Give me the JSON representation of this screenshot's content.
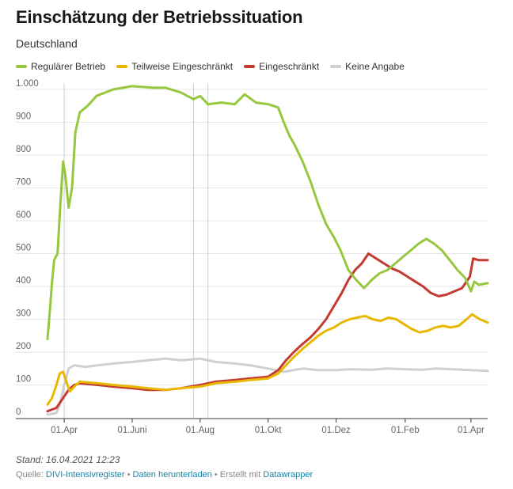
{
  "header": {
    "title": "Einschätzung der Betriebssituation",
    "subtitle": "Deutschland"
  },
  "legend": [
    {
      "label": "Regulärer Betrieb",
      "color": "#97c73f"
    },
    {
      "label": "Teilweise Eingeschränkt",
      "color": "#e8b800"
    },
    {
      "label": "Eingeschränkt",
      "color": "#c33a32"
    },
    {
      "label": "Keine Angabe",
      "color": "#cfcfcf"
    }
  ],
  "footer": {
    "stand": "Stand: 16.04.2021 12:23",
    "source_prefix": "Quelle: ",
    "source_link": "DIVI-Intensivregister",
    "sep1": " • ",
    "download_link": "Daten herunterladen",
    "sep2": " • Erstellt mit ",
    "tool_link": "Datawrapper"
  },
  "chart_data": {
    "type": "line",
    "title": "Einschätzung der Betriebssituation",
    "subtitle": "Deutschland",
    "xlabel": "",
    "ylabel": "",
    "x_range": [
      "2020-03-17",
      "2021-04-16"
    ],
    "ylim": [
      0,
      1000
    ],
    "y_ticks": [
      0,
      100,
      200,
      300,
      400,
      500,
      600,
      700,
      800,
      900,
      1000
    ],
    "y_tick_labels": [
      "0",
      "100",
      "200",
      "300",
      "400",
      "500",
      "600",
      "700",
      "800",
      "900",
      "1.000"
    ],
    "x_ticks": [
      {
        "date": "2020-04-01",
        "label": "01.Apr"
      },
      {
        "date": "2020-06-01",
        "label": "01.Juni"
      },
      {
        "date": "2020-08-01",
        "label": "01.Aug"
      },
      {
        "date": "2020-10-01",
        "label": "01.Okt"
      },
      {
        "date": "2020-12-01",
        "label": "01.Dez"
      },
      {
        "date": "2021-02-01",
        "label": "01.Feb"
      },
      {
        "date": "2021-04-01",
        "label": "01.Apr"
      }
    ],
    "reference_lines": [
      "2020-04-01",
      "2020-07-26",
      "2020-08-08"
    ],
    "series": [
      {
        "name": "Regulärer Betrieb",
        "color": "#97c73f",
        "points": [
          [
            "2020-03-17",
            240
          ],
          [
            "2020-03-19",
            320
          ],
          [
            "2020-03-21",
            410
          ],
          [
            "2020-03-23",
            480
          ],
          [
            "2020-03-26",
            500
          ],
          [
            "2020-03-28",
            620
          ],
          [
            "2020-03-31",
            780
          ],
          [
            "2020-04-02",
            740
          ],
          [
            "2020-04-05",
            640
          ],
          [
            "2020-04-08",
            700
          ],
          [
            "2020-04-11",
            870
          ],
          [
            "2020-04-15",
            930
          ],
          [
            "2020-04-22",
            950
          ],
          [
            "2020-04-30",
            980
          ],
          [
            "2020-05-15",
            1000
          ],
          [
            "2020-06-01",
            1010
          ],
          [
            "2020-06-20",
            1005
          ],
          [
            "2020-07-01",
            1005
          ],
          [
            "2020-07-15",
            990
          ],
          [
            "2020-07-26",
            970
          ],
          [
            "2020-08-01",
            980
          ],
          [
            "2020-08-08",
            955
          ],
          [
            "2020-08-20",
            960
          ],
          [
            "2020-09-01",
            955
          ],
          [
            "2020-09-10",
            985
          ],
          [
            "2020-09-20",
            960
          ],
          [
            "2020-10-01",
            955
          ],
          [
            "2020-10-10",
            945
          ],
          [
            "2020-10-15",
            900
          ],
          [
            "2020-10-20",
            860
          ],
          [
            "2020-10-25",
            830
          ],
          [
            "2020-11-01",
            780
          ],
          [
            "2020-11-08",
            720
          ],
          [
            "2020-11-15",
            650
          ],
          [
            "2020-11-22",
            590
          ],
          [
            "2020-11-29",
            550
          ],
          [
            "2020-12-05",
            510
          ],
          [
            "2020-12-12",
            450
          ],
          [
            "2020-12-19",
            420
          ],
          [
            "2020-12-26",
            395
          ],
          [
            "2021-01-02",
            420
          ],
          [
            "2021-01-09",
            440
          ],
          [
            "2021-01-16",
            450
          ],
          [
            "2021-01-23",
            470
          ],
          [
            "2021-01-30",
            490
          ],
          [
            "2021-02-06",
            510
          ],
          [
            "2021-02-13",
            530
          ],
          [
            "2021-02-20",
            545
          ],
          [
            "2021-02-27",
            530
          ],
          [
            "2021-03-06",
            510
          ],
          [
            "2021-03-13",
            480
          ],
          [
            "2021-03-20",
            450
          ],
          [
            "2021-03-27",
            425
          ],
          [
            "2021-04-01",
            385
          ],
          [
            "2021-04-04",
            415
          ],
          [
            "2021-04-08",
            405
          ],
          [
            "2021-04-16",
            410
          ]
        ]
      },
      {
        "name": "Teilweise Eingeschränkt",
        "color": "#e8b800",
        "points": [
          [
            "2020-03-17",
            40
          ],
          [
            "2020-03-21",
            60
          ],
          [
            "2020-03-25",
            100
          ],
          [
            "2020-03-28",
            135
          ],
          [
            "2020-03-31",
            140
          ],
          [
            "2020-04-03",
            110
          ],
          [
            "2020-04-06",
            80
          ],
          [
            "2020-04-10",
            95
          ],
          [
            "2020-04-15",
            110
          ],
          [
            "2020-05-01",
            105
          ],
          [
            "2020-05-15",
            100
          ],
          [
            "2020-06-01",
            95
          ],
          [
            "2020-06-15",
            90
          ],
          [
            "2020-07-01",
            85
          ],
          [
            "2020-07-15",
            90
          ],
          [
            "2020-08-01",
            95
          ],
          [
            "2020-08-15",
            105
          ],
          [
            "2020-09-01",
            110
          ],
          [
            "2020-09-15",
            115
          ],
          [
            "2020-10-01",
            120
          ],
          [
            "2020-10-10",
            135
          ],
          [
            "2020-10-17",
            160
          ],
          [
            "2020-10-24",
            185
          ],
          [
            "2020-11-01",
            210
          ],
          [
            "2020-11-08",
            230
          ],
          [
            "2020-11-15",
            250
          ],
          [
            "2020-11-22",
            265
          ],
          [
            "2020-11-29",
            275
          ],
          [
            "2020-12-06",
            290
          ],
          [
            "2020-12-13",
            300
          ],
          [
            "2020-12-20",
            305
          ],
          [
            "2020-12-27",
            310
          ],
          [
            "2021-01-03",
            300
          ],
          [
            "2021-01-10",
            295
          ],
          [
            "2021-01-17",
            305
          ],
          [
            "2021-01-24",
            300
          ],
          [
            "2021-01-31",
            285
          ],
          [
            "2021-02-07",
            270
          ],
          [
            "2021-02-14",
            260
          ],
          [
            "2021-02-21",
            265
          ],
          [
            "2021-02-28",
            275
          ],
          [
            "2021-03-07",
            280
          ],
          [
            "2021-03-14",
            275
          ],
          [
            "2021-03-21",
            280
          ],
          [
            "2021-03-28",
            300
          ],
          [
            "2021-04-02",
            315
          ],
          [
            "2021-04-09",
            300
          ],
          [
            "2021-04-16",
            290
          ]
        ]
      },
      {
        "name": "Eingeschränkt",
        "color": "#c33a32",
        "points": [
          [
            "2020-03-17",
            20
          ],
          [
            "2020-03-21",
            25
          ],
          [
            "2020-03-25",
            30
          ],
          [
            "2020-03-28",
            45
          ],
          [
            "2020-04-01",
            65
          ],
          [
            "2020-04-05",
            85
          ],
          [
            "2020-04-10",
            100
          ],
          [
            "2020-04-15",
            105
          ],
          [
            "2020-05-01",
            100
          ],
          [
            "2020-05-15",
            95
          ],
          [
            "2020-06-01",
            90
          ],
          [
            "2020-06-15",
            85
          ],
          [
            "2020-07-01",
            85
          ],
          [
            "2020-07-15",
            90
          ],
          [
            "2020-08-01",
            100
          ],
          [
            "2020-08-15",
            110
          ],
          [
            "2020-09-01",
            115
          ],
          [
            "2020-09-15",
            120
          ],
          [
            "2020-10-01",
            125
          ],
          [
            "2020-10-10",
            145
          ],
          [
            "2020-10-17",
            175
          ],
          [
            "2020-10-24",
            200
          ],
          [
            "2020-11-01",
            225
          ],
          [
            "2020-11-08",
            245
          ],
          [
            "2020-11-15",
            270
          ],
          [
            "2020-11-22",
            300
          ],
          [
            "2020-11-29",
            340
          ],
          [
            "2020-12-06",
            380
          ],
          [
            "2020-12-12",
            420
          ],
          [
            "2020-12-18",
            450
          ],
          [
            "2020-12-24",
            470
          ],
          [
            "2020-12-30",
            500
          ],
          [
            "2021-01-06",
            485
          ],
          [
            "2021-01-13",
            470
          ],
          [
            "2021-01-20",
            455
          ],
          [
            "2021-01-27",
            445
          ],
          [
            "2021-02-03",
            430
          ],
          [
            "2021-02-10",
            415
          ],
          [
            "2021-02-17",
            400
          ],
          [
            "2021-02-24",
            380
          ],
          [
            "2021-03-03",
            370
          ],
          [
            "2021-03-10",
            375
          ],
          [
            "2021-03-17",
            385
          ],
          [
            "2021-03-24",
            395
          ],
          [
            "2021-03-31",
            430
          ],
          [
            "2021-04-03",
            485
          ],
          [
            "2021-04-08",
            480
          ],
          [
            "2021-04-16",
            480
          ]
        ]
      },
      {
        "name": "Keine Angabe",
        "color": "#cfcfcf",
        "points": [
          [
            "2020-03-17",
            10
          ],
          [
            "2020-03-21",
            12
          ],
          [
            "2020-03-25",
            15
          ],
          [
            "2020-03-28",
            40
          ],
          [
            "2020-04-01",
            100
          ],
          [
            "2020-04-05",
            150
          ],
          [
            "2020-04-10",
            160
          ],
          [
            "2020-04-20",
            155
          ],
          [
            "2020-05-01",
            160
          ],
          [
            "2020-05-15",
            165
          ],
          [
            "2020-06-01",
            170
          ],
          [
            "2020-06-15",
            175
          ],
          [
            "2020-07-01",
            180
          ],
          [
            "2020-07-15",
            175
          ],
          [
            "2020-08-01",
            180
          ],
          [
            "2020-08-15",
            170
          ],
          [
            "2020-09-01",
            165
          ],
          [
            "2020-09-15",
            160
          ],
          [
            "2020-10-01",
            150
          ],
          [
            "2020-10-15",
            140
          ],
          [
            "2020-11-01",
            150
          ],
          [
            "2020-11-15",
            145
          ],
          [
            "2020-12-01",
            145
          ],
          [
            "2020-12-15",
            148
          ],
          [
            "2021-01-01",
            146
          ],
          [
            "2021-01-15",
            150
          ],
          [
            "2021-02-01",
            148
          ],
          [
            "2021-02-15",
            146
          ],
          [
            "2021-03-01",
            150
          ],
          [
            "2021-03-15",
            148
          ],
          [
            "2021-04-01",
            145
          ],
          [
            "2021-04-16",
            143
          ]
        ]
      }
    ]
  }
}
